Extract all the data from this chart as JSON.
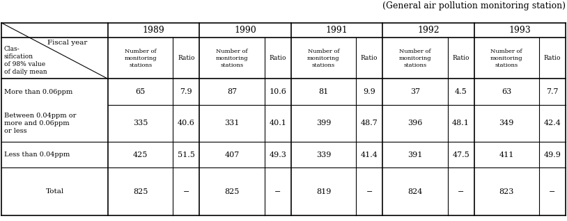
{
  "caption": "(General air pollution monitoring station)",
  "years": [
    "1989",
    "1990",
    "1991",
    "1992",
    "1993"
  ],
  "rows": [
    {
      "label": "More than 0.06ppm",
      "data": [
        [
          "65",
          "7.9"
        ],
        [
          "87",
          "10.6"
        ],
        [
          "81",
          "9.9"
        ],
        [
          "37",
          "4.5"
        ],
        [
          "63",
          "7.7"
        ]
      ],
      "is_total": false
    },
    {
      "label": "Between 0.04ppm or\nmore and 0.06ppm\nor less",
      "data": [
        [
          "335",
          "40.6"
        ],
        [
          "331",
          "40.1"
        ],
        [
          "399",
          "48.7"
        ],
        [
          "396",
          "48.1"
        ],
        [
          "349",
          "42.4"
        ]
      ],
      "is_total": false
    },
    {
      "label": "Less than 0.04ppm",
      "data": [
        [
          "425",
          "51.5"
        ],
        [
          "407",
          "49.3"
        ],
        [
          "339",
          "41.4"
        ],
        [
          "391",
          "47.5"
        ],
        [
          "411",
          "49.9"
        ]
      ],
      "is_total": false
    },
    {
      "label": "Total",
      "data": [
        [
          "825",
          "−"
        ],
        [
          "825",
          "−"
        ],
        [
          "819",
          "−"
        ],
        [
          "824",
          "−"
        ],
        [
          "823",
          "−"
        ]
      ],
      "is_total": true
    }
  ],
  "bg_color": "#ffffff",
  "text_color": "#000000",
  "line_color": "#000000"
}
